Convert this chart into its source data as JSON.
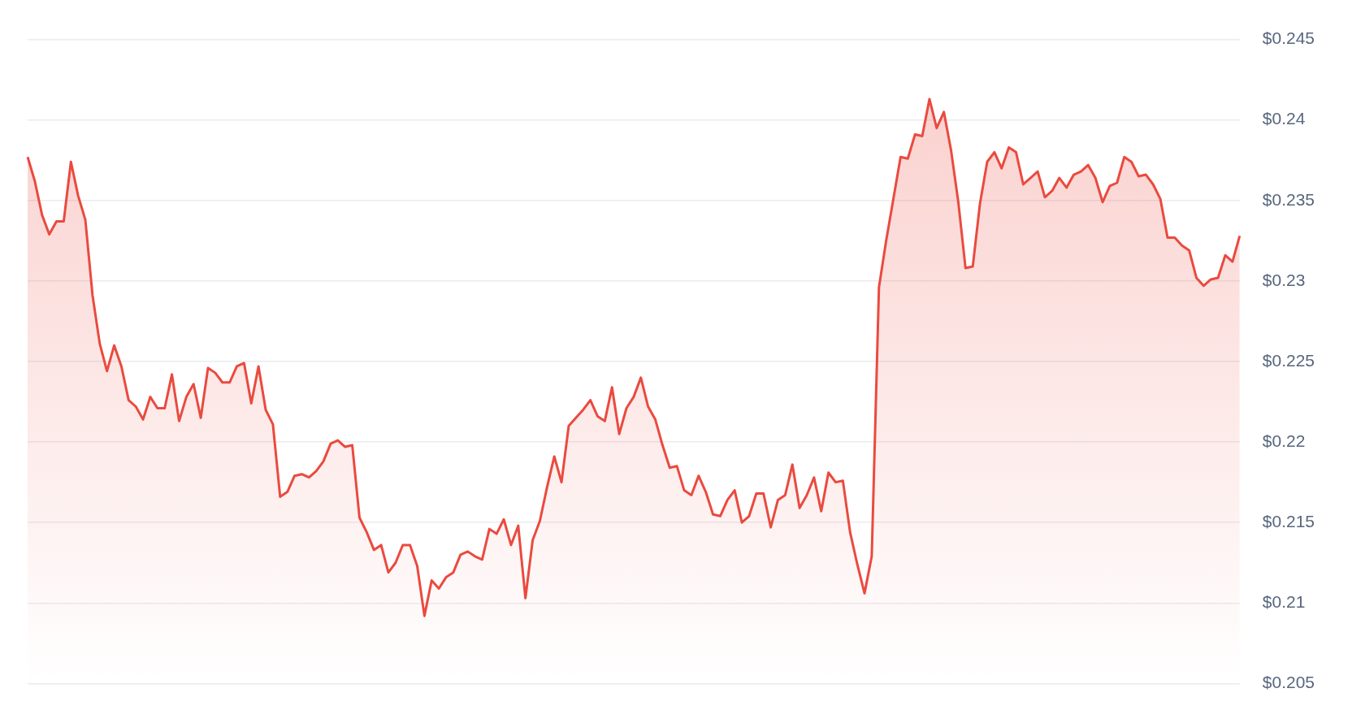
{
  "chart_data": {
    "type": "area",
    "categories": [
      null,
      null,
      null,
      null,
      null,
      null,
      null,
      null,
      null,
      null,
      null,
      null,
      null,
      null,
      null,
      null,
      null,
      null,
      null,
      null,
      null,
      null,
      null,
      null,
      null,
      null,
      null,
      null,
      null,
      null,
      null,
      null,
      null,
      null,
      null,
      null,
      null,
      null,
      null,
      null,
      null,
      null,
      null,
      null,
      null,
      null,
      null,
      null,
      null,
      null,
      null,
      null,
      null,
      null,
      null,
      null,
      null,
      null,
      null,
      null,
      null,
      null,
      null,
      null,
      null,
      null,
      null,
      null,
      null,
      null,
      null,
      null,
      null,
      null,
      null,
      null,
      null,
      null,
      null,
      null,
      null,
      null,
      null,
      null,
      null,
      null,
      null,
      null,
      null,
      null,
      null,
      null,
      null,
      null,
      null,
      null,
      null,
      null,
      null,
      null,
      null,
      null,
      null,
      null,
      null,
      null,
      null,
      null,
      null,
      null,
      null,
      null,
      null,
      null,
      null,
      null,
      null,
      null,
      null,
      null,
      null,
      null,
      null,
      null,
      null,
      null,
      null,
      null,
      null,
      null,
      null,
      null,
      null,
      null,
      null,
      null,
      null,
      null,
      null,
      null,
      null,
      null,
      null,
      null,
      null,
      null,
      null,
      null,
      null,
      null,
      null,
      null,
      null,
      null,
      null,
      null,
      null,
      null,
      null,
      null,
      null,
      null,
      null,
      null,
      null,
      null,
      null,
      null,
      null
    ],
    "series": [
      {
        "color": "#ea4a3f",
        "values": [
          0.2377,
          0.2362,
          0.2341,
          0.2329,
          0.2337,
          0.2337,
          0.2374,
          0.2353,
          0.2338,
          0.2291,
          0.2261,
          0.2244,
          0.226,
          0.2247,
          0.2226,
          0.2222,
          0.2214,
          0.2228,
          0.2221,
          0.2221,
          0.2242,
          0.2213,
          0.2228,
          0.2236,
          0.2215,
          0.2246,
          0.2243,
          0.2237,
          0.2237,
          0.2247,
          0.2249,
          0.2224,
          0.2247,
          0.222,
          0.2211,
          0.2166,
          0.2169,
          0.2179,
          0.218,
          0.2178,
          0.2182,
          0.2188,
          0.2199,
          0.2201,
          0.2197,
          0.2198,
          0.2153,
          0.2144,
          0.2133,
          0.2136,
          0.2119,
          0.2125,
          0.2136,
          0.2136,
          0.2123,
          0.2092,
          0.2114,
          0.2109,
          0.2116,
          0.2119,
          0.213,
          0.2132,
          0.2129,
          0.2127,
          0.2146,
          0.2143,
          0.2152,
          0.2136,
          0.2148,
          0.2103,
          0.2139,
          0.2151,
          0.2172,
          0.2191,
          0.2175,
          0.221,
          0.2215,
          0.222,
          0.2226,
          0.2216,
          0.2213,
          0.2234,
          0.2205,
          0.2221,
          0.2228,
          0.224,
          0.2222,
          0.2214,
          0.2198,
          0.2184,
          0.2185,
          0.217,
          0.2167,
          0.2179,
          0.2169,
          0.2155,
          0.2154,
          0.2164,
          0.217,
          0.215,
          0.2154,
          0.2168,
          0.2168,
          0.2147,
          0.2164,
          0.2167,
          0.2186,
          0.2159,
          0.2167,
          0.2178,
          0.2157,
          0.2181,
          0.2175,
          0.2176,
          0.2144,
          0.2124,
          0.2106,
          0.2129,
          0.2296,
          0.2325,
          0.2351,
          0.2377,
          0.2376,
          0.2391,
          0.239,
          0.2413,
          0.2395,
          0.2405,
          0.2381,
          0.2349,
          0.2308,
          0.2309,
          0.2348,
          0.2374,
          0.238,
          0.237,
          0.2383,
          0.238,
          0.236,
          0.2364,
          0.2368,
          0.2352,
          0.2356,
          0.2364,
          0.2358,
          0.2366,
          0.2368,
          0.2372,
          0.2364,
          0.2349,
          0.2359,
          0.2361,
          0.2377,
          0.2374,
          0.2365,
          0.2366,
          0.236,
          0.2351,
          0.2327,
          0.2327,
          0.2322,
          0.2319,
          0.2302,
          0.2297,
          0.2301,
          0.2302,
          0.2316,
          0.2312,
          0.2328
        ]
      }
    ],
    "ylim": [
      0.205,
      0.245
    ],
    "yticks": [
      {
        "value": 0.205,
        "label": "$0.205"
      },
      {
        "value": 0.21,
        "label": "$0.21"
      },
      {
        "value": 0.215,
        "label": "$0.215"
      },
      {
        "value": 0.22,
        "label": "$0.22"
      },
      {
        "value": 0.225,
        "label": "$0.225"
      },
      {
        "value": 0.23,
        "label": "$0.23"
      },
      {
        "value": 0.235,
        "label": "$0.235"
      },
      {
        "value": 0.24,
        "label": "$0.24"
      },
      {
        "value": 0.245,
        "label": "$0.245"
      }
    ],
    "grid": "y",
    "tick_labels": "y",
    "legend": false,
    "marker": "none",
    "line_style": "solid"
  }
}
